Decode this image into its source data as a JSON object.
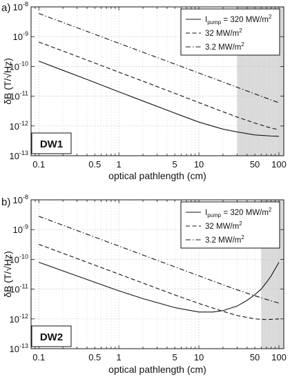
{
  "chart_data": [
    {
      "type": "line",
      "panel_label": "a)",
      "tag": "DW1",
      "xlabel": "optical pathlength (cm)",
      "ylabel": "δB (T/√Hz)",
      "x_scale": "log",
      "y_scale": "log",
      "xlim": [
        0.08,
        115
      ],
      "ylim": [
        1e-13,
        1e-08
      ],
      "x_ticks": [
        {
          "v": 0.1,
          "label": "0.1"
        },
        {
          "v": 0.5,
          "label": "0.5"
        },
        {
          "v": 1,
          "label": "1"
        },
        {
          "v": 5,
          "label": "5"
        },
        {
          "v": 10,
          "label": "10"
        },
        {
          "v": 50,
          "label": "50"
        },
        {
          "v": 100,
          "label": "100"
        }
      ],
      "y_ticks": [
        {
          "v": 1e-13,
          "base": "10",
          "exp": "-13"
        },
        {
          "v": 1e-12,
          "base": "10",
          "exp": "-12"
        },
        {
          "v": 1e-11,
          "base": "10",
          "exp": "-11"
        },
        {
          "v": 1e-10,
          "base": "10",
          "exp": "-10"
        },
        {
          "v": 1e-09,
          "base": "10",
          "exp": "-9"
        },
        {
          "v": 1e-08,
          "base": "10",
          "exp": "-8"
        }
      ],
      "grid": true,
      "legend_position": "top-right",
      "shaded_region": {
        "x_start": 30,
        "x_end": 115
      },
      "series": [
        {
          "legend_main": "I",
          "legend_sub": "pump",
          "legend_rest": " = 320 MW/m",
          "legend_sup": "2",
          "style": "solid",
          "x": [
            0.1,
            0.2,
            0.5,
            1,
            2,
            5,
            10,
            20,
            30,
            50,
            80,
            100
          ],
          "y": [
            1.5e-10,
            7.4e-11,
            2.9e-11,
            1.4e-11,
            6.9e-12,
            2.7e-12,
            1.35e-12,
            7.8e-13,
            6.3e-13,
            5e-13,
            4.6e-13,
            4.5e-13
          ]
        },
        {
          "legend_main": "",
          "legend_sub": "",
          "legend_rest": "32 MW/m",
          "legend_sup": "2",
          "style": "dash",
          "x": [
            0.1,
            0.2,
            0.5,
            1,
            2,
            5,
            10,
            20,
            30,
            50,
            80,
            100
          ],
          "y": [
            6.6e-10,
            3.3e-10,
            1.3e-10,
            6.4e-11,
            3.2e-11,
            1.25e-11,
            6.1e-12,
            3e-12,
            2e-12,
            1.25e-12,
            8.5e-13,
            7.5e-13
          ]
        },
        {
          "legend_main": "",
          "legend_sub": "",
          "legend_rest": "3.2 MW/m",
          "legend_sup": "2",
          "style": "dashdot",
          "x": [
            0.1,
            0.2,
            0.5,
            1,
            2,
            5,
            10,
            20,
            30,
            50,
            80,
            100
          ],
          "y": [
            6e-09,
            3e-09,
            1.2e-09,
            6e-10,
            3e-10,
            1.2e-10,
            6e-11,
            3e-11,
            2e-11,
            1.2e-11,
            7.5e-12,
            6e-12
          ]
        }
      ]
    },
    {
      "type": "line",
      "panel_label": "b)",
      "tag": "DW2",
      "xlabel": "optical pathlength (cm)",
      "ylabel": "δB (T/√Hz)",
      "x_scale": "log",
      "y_scale": "log",
      "xlim": [
        0.08,
        115
      ],
      "ylim": [
        1e-13,
        1e-08
      ],
      "x_ticks": [
        {
          "v": 0.1,
          "label": "0.1"
        },
        {
          "v": 0.5,
          "label": "0.5"
        },
        {
          "v": 1,
          "label": "1"
        },
        {
          "v": 5,
          "label": "5"
        },
        {
          "v": 10,
          "label": "10"
        },
        {
          "v": 50,
          "label": "50"
        },
        {
          "v": 100,
          "label": "100"
        }
      ],
      "y_ticks": [
        {
          "v": 1e-13,
          "base": "10",
          "exp": "-13"
        },
        {
          "v": 1e-12,
          "base": "10",
          "exp": "-12"
        },
        {
          "v": 1e-11,
          "base": "10",
          "exp": "-11"
        },
        {
          "v": 1e-10,
          "base": "10",
          "exp": "-10"
        },
        {
          "v": 1e-09,
          "base": "10",
          "exp": "-9"
        },
        {
          "v": 1e-08,
          "base": "10",
          "exp": "-8"
        }
      ],
      "grid": true,
      "legend_position": "top-right",
      "shaded_region": {
        "x_start": 60,
        "x_end": 115
      },
      "series": [
        {
          "legend_main": "I",
          "legend_sub": "pump",
          "legend_rest": " = 320 MW/m",
          "legend_sup": "2",
          "style": "solid",
          "x": [
            0.1,
            0.2,
            0.5,
            1,
            2,
            5,
            10,
            15,
            20,
            30,
            40,
            50,
            60,
            70,
            80,
            100
          ],
          "y": [
            8e-11,
            4.1e-11,
            1.7e-11,
            8.8e-12,
            4.8e-12,
            2.4e-12,
            1.7e-12,
            1.7e-12,
            1.9e-12,
            2.7e-12,
            4.2e-12,
            6.5e-12,
            1e-11,
            1.7e-11,
            2.8e-11,
            8e-11
          ]
        },
        {
          "legend_main": "",
          "legend_sub": "",
          "legend_rest": "32 MW/m",
          "legend_sup": "2",
          "style": "dash",
          "x": [
            0.1,
            0.2,
            0.5,
            1,
            2,
            5,
            10,
            20,
            30,
            50,
            70,
            100
          ],
          "y": [
            3.2e-10,
            1.6e-10,
            6.4e-11,
            3.2e-11,
            1.6e-11,
            6.4e-12,
            3.3e-12,
            1.8e-12,
            1.3e-12,
            1e-12,
            9.5e-13,
            1e-12
          ]
        },
        {
          "legend_main": "",
          "legend_sub": "",
          "legend_rest": "3.2 MW/m",
          "legend_sup": "2",
          "style": "dashdot",
          "x": [
            0.1,
            0.2,
            0.5,
            1,
            2,
            5,
            10,
            20,
            30,
            50,
            70,
            100
          ],
          "y": [
            2.8e-09,
            1.4e-09,
            5.6e-10,
            2.8e-10,
            1.4e-10,
            5.6e-11,
            2.8e-11,
            1.4e-11,
            9.5e-12,
            6e-12,
            4.5e-12,
            3.4e-12
          ]
        }
      ]
    }
  ]
}
